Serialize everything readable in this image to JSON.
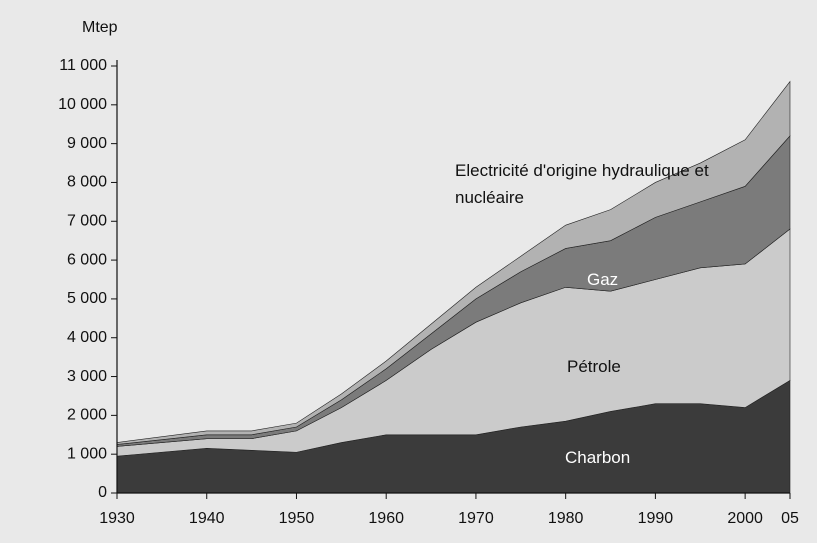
{
  "chart_data": {
    "type": "stacked_area",
    "ylabel": "Mtep",
    "x": [
      1930,
      1940,
      1945,
      1950,
      1955,
      1960,
      1965,
      1970,
      1975,
      1980,
      1985,
      1990,
      1995,
      2000,
      2005
    ],
    "series": [
      {
        "name": "Charbon",
        "color": "#3b3b3b",
        "values": [
          950,
          1150,
          1100,
          1050,
          1300,
          1500,
          1500,
          1500,
          1700,
          1850,
          2100,
          2300,
          2300,
          2200,
          2900
        ]
      },
      {
        "name": "Pétrole",
        "color": "#cbcbcb",
        "values": [
          250,
          250,
          300,
          550,
          900,
          1400,
          2200,
          2900,
          3200,
          3450,
          3100,
          3200,
          3500,
          3700,
          3900
        ]
      },
      {
        "name": "Gaz",
        "color": "#7b7b7b",
        "values": [
          50,
          100,
          100,
          100,
          200,
          300,
          400,
          600,
          800,
          1000,
          1300,
          1600,
          1700,
          2000,
          2400
        ]
      },
      {
        "name": "Electricité d'origine hydraulique et nucléaire",
        "color": "#b2b2b2",
        "values": [
          50,
          100,
          100,
          100,
          150,
          200,
          250,
          300,
          400,
          600,
          800,
          900,
          1000,
          1200,
          1400
        ]
      }
    ],
    "xlim": [
      1930,
      2005
    ],
    "xticks": [
      1930,
      1940,
      1950,
      1960,
      1970,
      1980,
      1990,
      2000,
      {
        "value": 2005,
        "label": "05"
      }
    ],
    "ylim": [
      0,
      11000
    ],
    "yticks": [
      0,
      {
        "value": 1000,
        "label": "1 000"
      },
      {
        "value": 2000,
        "label": "2 000"
      },
      {
        "value": 3000,
        "label": "3 000"
      },
      {
        "value": 4000,
        "label": "4 000"
      },
      {
        "value": 5000,
        "label": "5 000"
      },
      {
        "value": 6000,
        "label": "6 000"
      },
      {
        "value": 7000,
        "label": "7 000"
      },
      {
        "value": 8000,
        "label": "8 000"
      },
      {
        "value": 9000,
        "label": "9 000"
      },
      {
        "value": 10000,
        "label": "10 000"
      },
      {
        "value": 11000,
        "label": "11 000"
      }
    ]
  }
}
